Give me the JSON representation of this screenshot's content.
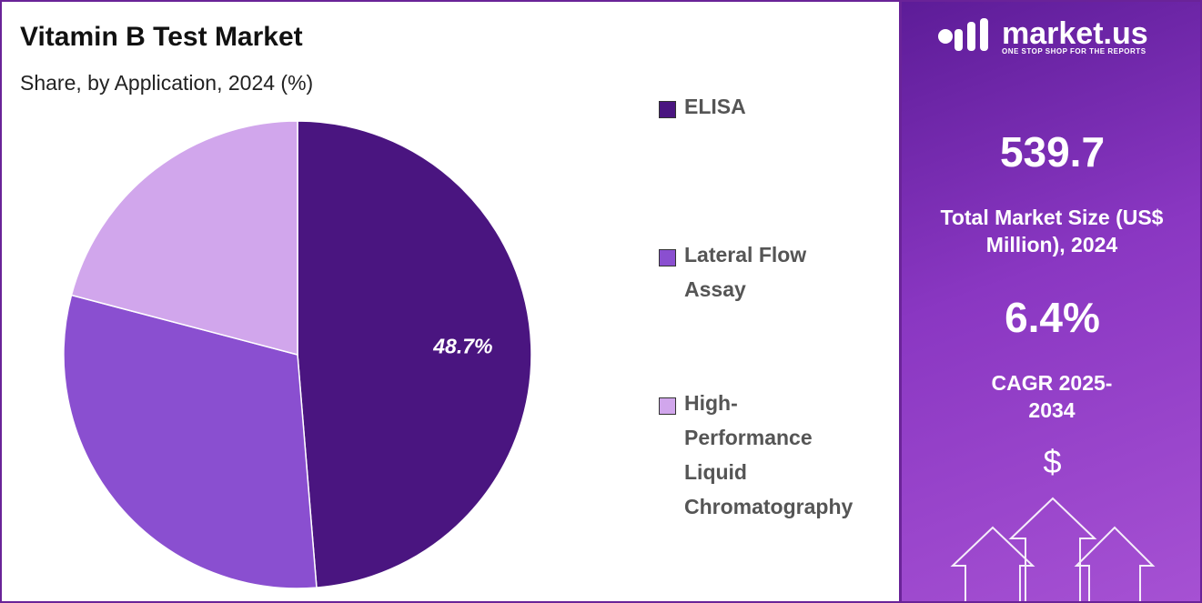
{
  "chart_data": {
    "type": "pie",
    "title": "Vitamin B Test Market",
    "subtitle": "Share, by Application, 2024 (%)",
    "categories": [
      "ELISA",
      "Lateral Flow Assay",
      "High-Performance Liquid Chromatography"
    ],
    "values": [
      48.7,
      30.4,
      20.9
    ],
    "value_labels": [
      "48.7%",
      null,
      null
    ],
    "colors": [
      "#4a1580",
      "#8a4fd0",
      "#d1a6ec"
    ]
  },
  "sidebar": {
    "brand": "market.us",
    "tagline": "ONE STOP SHOP FOR THE REPORTS",
    "market_size": "539.7",
    "market_size_label": "Total Market Size (US$ Million), 2024",
    "cagr": "6.4%",
    "cagr_label": "CAGR 2025-2034",
    "currency": "$"
  }
}
